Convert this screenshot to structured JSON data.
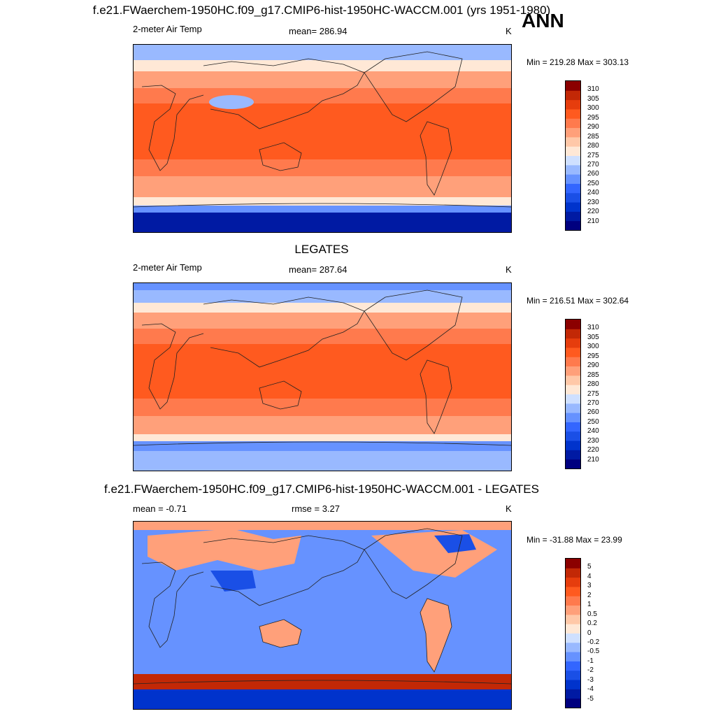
{
  "season": "ANN",
  "panels": [
    {
      "title": "f.e21.FWaerchem-1950HC.f09_g17.CMIP6-hist-1950HC-WACCM.001 (yrs 1951-1980)",
      "left_label": "2-meter Air Temp",
      "center_label": "mean= 286.94",
      "units": "K",
      "minmax": "Min = 219.28 Max = 303.13",
      "colorbar": {
        "levels": [
          "210",
          "220",
          "230",
          "240",
          "250",
          "260",
          "270",
          "275",
          "280",
          "285",
          "290",
          "295",
          "300",
          "305",
          "310"
        ],
        "colors": [
          "#00007f",
          "#001aa3",
          "#0033cc",
          "#1a4fe6",
          "#3366ff",
          "#6692ff",
          "#99b9ff",
          "#cfe0ff",
          "#ffe8d6",
          "#ffc8a8",
          "#ffa07a",
          "#ff7a4d",
          "#ff5a1f",
          "#e63d0d",
          "#c22806",
          "#8b0000"
        ]
      },
      "map_colors": {
        "tropics": "#ff5a1f",
        "subtropics": "#ff7a4d",
        "midlat": "#ffa07a",
        "highmid": "#ffe8d6",
        "arctic": "#99b9ff",
        "polar": "#6692ff",
        "antarctic": "#001aa3",
        "warmpool": "#e63d0d"
      }
    },
    {
      "title": "LEGATES",
      "left_label": "2-meter Air Temp",
      "center_label": "mean= 287.64",
      "units": "K",
      "minmax": "Min = 216.51 Max = 302.64",
      "colorbar": {
        "levels": [
          "210",
          "220",
          "230",
          "240",
          "250",
          "260",
          "270",
          "275",
          "280",
          "285",
          "290",
          "295",
          "300",
          "305",
          "310"
        ],
        "colors": [
          "#00007f",
          "#001aa3",
          "#0033cc",
          "#1a4fe6",
          "#3366ff",
          "#6692ff",
          "#99b9ff",
          "#cfe0ff",
          "#ffe8d6",
          "#ffc8a8",
          "#ffa07a",
          "#ff7a4d",
          "#ff5a1f",
          "#e63d0d",
          "#c22806",
          "#8b0000"
        ]
      },
      "map_colors": {
        "tropics": "#ff5a1f",
        "subtropics": "#ff7a4d",
        "midlat": "#ffa07a",
        "highmid": "#ffe8d6",
        "arctic": "#99b9ff",
        "polar": "#6692ff",
        "antarctic": "#001aa3",
        "warmpool": "#e63d0d"
      }
    },
    {
      "title": "f.e21.FWaerchem-1950HC.f09_g17.CMIP6-hist-1950HC-WACCM.001 - LEGATES",
      "left_label": "mean =  -0.71",
      "center_label": "rmse =   3.27",
      "units": "K",
      "minmax": "Min = -31.88 Max =  23.99",
      "colorbar": {
        "levels": [
          "-5",
          "-4",
          "-3",
          "-2",
          "-1",
          "-0.5",
          "-0.2",
          "0",
          "0.2",
          "0.5",
          "1",
          "2",
          "3",
          "4",
          "5"
        ],
        "colors": [
          "#00007f",
          "#001aa3",
          "#0033cc",
          "#1a4fe6",
          "#3366ff",
          "#6692ff",
          "#99b9ff",
          "#cfe0ff",
          "#ffe8d6",
          "#ffc8a8",
          "#ffa07a",
          "#ff7a4d",
          "#ff5a1f",
          "#e63d0d",
          "#c22806",
          "#8b0000"
        ]
      },
      "map_colors": {
        "ocean": "#6692ff",
        "warm": "#ffa07a",
        "cold": "#1a4fe6",
        "southband": "#c22806",
        "antarctic": "#0033cc"
      }
    }
  ]
}
